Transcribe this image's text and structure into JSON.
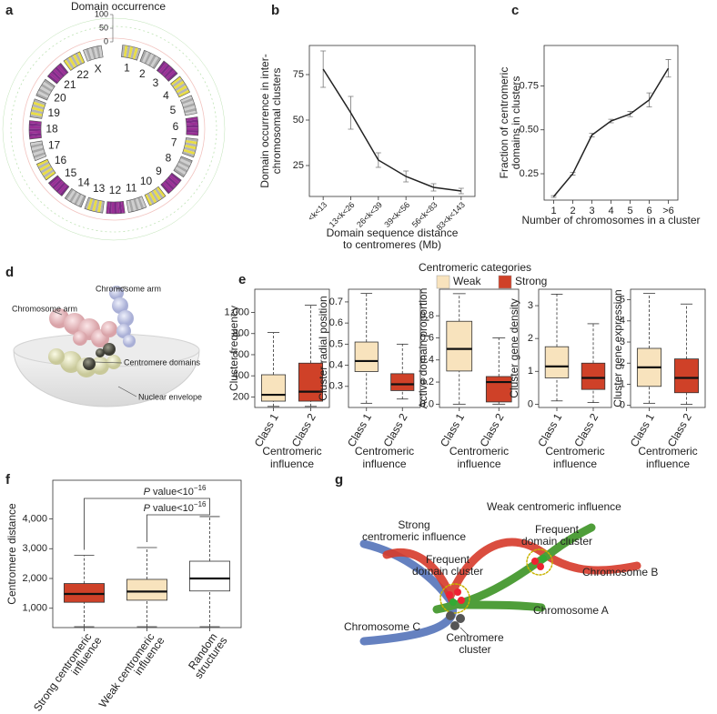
{
  "panel_labels": [
    "a",
    "b",
    "c",
    "d",
    "e",
    "f",
    "g"
  ],
  "circos": {
    "title": "Domain occurrence",
    "scale_ticks": [
      100,
      50,
      0
    ],
    "chromosomes": [
      "1",
      "2",
      "3",
      "4",
      "5",
      "6",
      "7",
      "8",
      "9",
      "10",
      "11",
      "12",
      "13",
      "14",
      "15",
      "16",
      "17",
      "18",
      "19",
      "20",
      "21",
      "22",
      "X"
    ]
  },
  "render": {
    "labels": [
      "Chromosome arm",
      "Chromosome arm",
      "Centromere domains",
      "Nuclear envelope"
    ]
  },
  "legend_e": {
    "title": "Centromeric categories",
    "entries": [
      {
        "name": "Weak",
        "color": "#f8e3bd"
      },
      {
        "name": "Strong",
        "color": "#cf4128"
      }
    ]
  },
  "chart_data": [
    {
      "type": "line",
      "ylabel": [
        "Domain occurrence in inter-",
        "chromosomal clusters"
      ],
      "xlabel": [
        "Domain sequence distance",
        "to centromeres (Mb)"
      ],
      "categories": [
        "<k<13",
        "13<k<26",
        "26<k<39",
        "39<k<56",
        "56<k<83",
        "83<k<143"
      ],
      "values": [
        78,
        54,
        28,
        19,
        13,
        11
      ],
      "errors": [
        10,
        9,
        4,
        3,
        2,
        1.5
      ],
      "ylim": [
        8,
        91
      ],
      "yticks": [
        25,
        50,
        75
      ],
      "color": "#222222"
    },
    {
      "type": "line",
      "ylabel": [
        "Fraction of centromeric",
        "domains in clusters"
      ],
      "xlabel": [
        "Number of chromosomes in a cluster"
      ],
      "categories": [
        "1",
        "2",
        "3",
        "4",
        "5",
        "6",
        ">6"
      ],
      "values": [
        0.12,
        0.25,
        0.47,
        0.55,
        0.59,
        0.67,
        0.85
      ],
      "errors": [
        0.005,
        0.008,
        0.01,
        0.01,
        0.015,
        0.04,
        0.05
      ],
      "ylim": [
        0.1,
        0.98
      ],
      "yticks": [
        0.25,
        {
          "value": 0.5,
          "label": "0.50"
        },
        0.75
      ],
      "color": "#222222"
    },
    {
      "type": "box",
      "ylabel": [
        "Cluster frequency"
      ],
      "xlabel": [
        "Centromeric",
        "influence"
      ],
      "categories": [
        "Class 1",
        "Class 2"
      ],
      "colors": [
        "#f8e3bd",
        "#cf4128"
      ],
      "boxes": [
        {
          "whislo": 110,
          "q1": 160,
          "med": 220,
          "q3": 410,
          "whishi": 810
        },
        {
          "whislo": 110,
          "q1": 160,
          "med": 250,
          "q3": 520,
          "whishi": 1070
        }
      ],
      "ylim": [
        100,
        1220
      ],
      "yticks": [
        200,
        400,
        600,
        800,
        {
          "value": 1000,
          "label": "1,000"
        }
      ]
    },
    {
      "type": "box",
      "ylabel": [
        "Cluster radial position"
      ],
      "xlabel": [
        "Centromeric",
        "influence"
      ],
      "categories": [
        "Class 1",
        "Class 2"
      ],
      "colors": [
        "#f8e3bd",
        "#cf4128"
      ],
      "boxes": [
        {
          "whislo": 0.22,
          "q1": 0.37,
          "med": 0.42,
          "q3": 0.51,
          "whishi": 0.74
        },
        {
          "whislo": 0.24,
          "q1": 0.28,
          "med": 0.31,
          "q3": 0.36,
          "whishi": 0.5
        }
      ],
      "ylim": [
        0.2,
        0.76
      ],
      "yticks": [
        0.3,
        0.4,
        0.5,
        0.6,
        0.7
      ]
    },
    {
      "type": "box",
      "ylabel": [
        "Active domain proportion"
      ],
      "xlabel": [
        "Centromeric",
        "influence"
      ],
      "categories": [
        "Class 1",
        "Class 2"
      ],
      "colors": [
        "#f8e3bd",
        "#cf4128"
      ],
      "boxes": [
        {
          "whislo": 0,
          "q1": 0.3,
          "med": 0.5,
          "q3": 0.75,
          "whishi": 1.0
        },
        {
          "whislo": 0,
          "q1": 0.02,
          "med": 0.2,
          "q3": 0.25,
          "whishi": 0.6
        }
      ],
      "ylim": [
        -0.03,
        1.04
      ],
      "yticks": [
        {
          "value": 0,
          "label": "0.0"
        },
        0.2,
        0.4,
        0.6,
        0.8
      ]
    },
    {
      "type": "box",
      "ylabel": [
        "Cluster gene density"
      ],
      "xlabel": [
        "Centromeric",
        "influence"
      ],
      "categories": [
        "Class 1",
        "Class 2"
      ],
      "colors": [
        "#f8e3bd",
        "#cf4128"
      ],
      "boxes": [
        {
          "whislo": 0.1,
          "q1": 0.8,
          "med": 1.15,
          "q3": 1.75,
          "whishi": 3.35
        },
        {
          "whislo": 0.05,
          "q1": 0.45,
          "med": 0.8,
          "q3": 1.25,
          "whishi": 2.45
        }
      ],
      "ylim": [
        -0.1,
        3.5
      ],
      "yticks": [
        0,
        1,
        2,
        3
      ]
    },
    {
      "type": "box",
      "ylabel": [
        "Cluster gene expression"
      ],
      "xlabel": [
        "Centromeric",
        "influence"
      ],
      "categories": [
        "Class 1",
        "Class 2"
      ],
      "colors": [
        "#f8e3bd",
        "#cf4128"
      ],
      "boxes": [
        {
          "whislo": 0.1,
          "q1": 0.9,
          "med": 1.8,
          "q3": 2.7,
          "whishi": 5.3
        },
        {
          "whislo": 0.05,
          "q1": 0.6,
          "med": 1.3,
          "q3": 2.2,
          "whishi": 4.8
        }
      ],
      "ylim": [
        -0.1,
        5.5
      ],
      "yticks": [
        0,
        1,
        2,
        3,
        4,
        5
      ]
    },
    {
      "type": "box",
      "ylabel": [
        "Centromere distance"
      ],
      "categories": [
        [
          "Strong centromeric",
          "influence"
        ],
        [
          "Weak centromeric",
          "influence"
        ],
        [
          "Random",
          "structures"
        ]
      ],
      "colors": [
        "#cf4128",
        "#f8e3bd",
        "#ffffff"
      ],
      "boxes": [
        {
          "whislo": 380,
          "q1": 1200,
          "med": 1480,
          "q3": 1830,
          "whishi": 2780
        },
        {
          "whislo": 380,
          "q1": 1270,
          "med": 1560,
          "q3": 1970,
          "whishi": 3040
        },
        {
          "whislo": 380,
          "q1": 1580,
          "med": 2000,
          "q3": 2580,
          "whishi": 4080
        }
      ],
      "ylim": [
        350,
        5300
      ],
      "yticks": [
        {
          "value": 1000,
          "label": "1,000"
        },
        {
          "value": 2000,
          "label": "2,000"
        },
        {
          "value": 3000,
          "label": "3,000"
        },
        {
          "value": 4000,
          "label": "4,000"
        }
      ],
      "annotations": [
        {
          "p": "P",
          "text": " value<10",
          "exponent": "−16"
        },
        {
          "p": "P",
          "text": " value<10",
          "exponent": "−16"
        }
      ]
    }
  ],
  "diagram": {
    "weak_influence": "Weak centromeric influence",
    "strong_influence": [
      "Strong",
      "centromeric influence"
    ],
    "clusters": [
      [
        "Frequent",
        "domain cluster"
      ],
      [
        "Frequent",
        "domain cluster"
      ]
    ],
    "chromosomes": [
      "Chromosome A",
      "Chromosome B",
      "Chromosome C"
    ],
    "centromere_cluster": [
      "Centromere",
      "cluster"
    ]
  }
}
